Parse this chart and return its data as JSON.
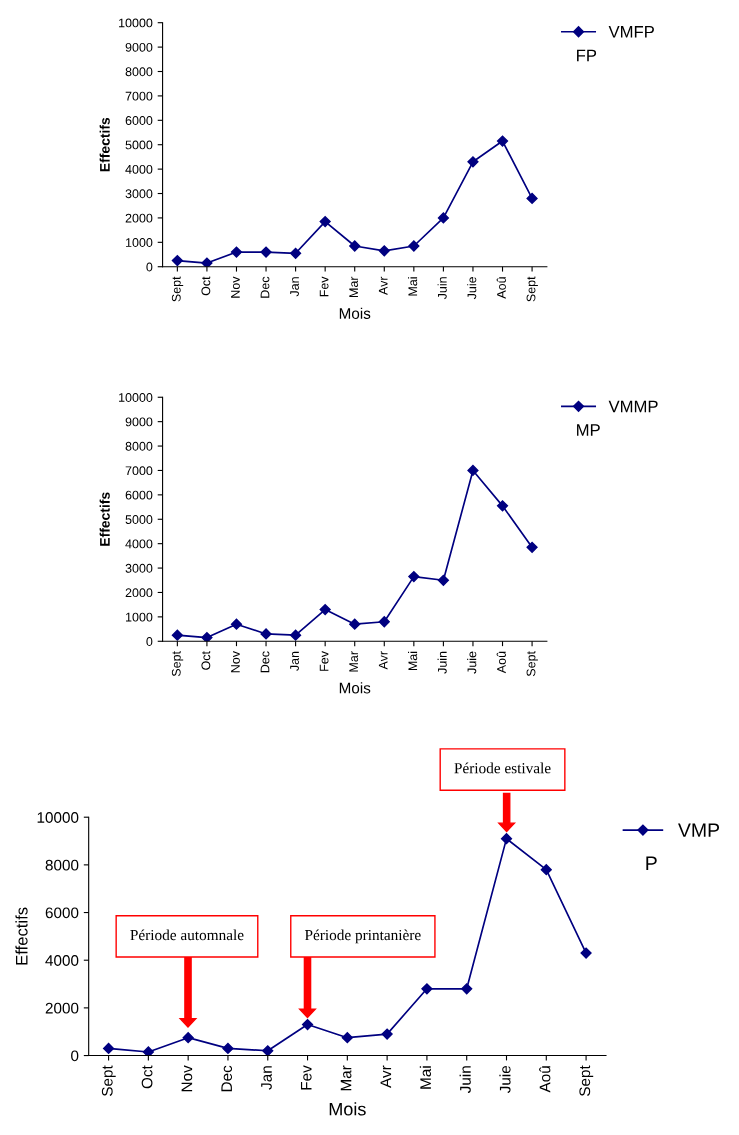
{
  "chart_data": [
    {
      "type": "line",
      "xlabel": "Mois",
      "ylabel": "Effectifs",
      "categories": [
        "Sept",
        "Oct",
        "Nov",
        "Dec",
        "Jan",
        "Fev",
        "Mar",
        "Avr",
        "Mai",
        "Juin",
        "Juie",
        "Aoû",
        "Sept"
      ],
      "series": [
        {
          "name": "VMFP",
          "color": "#000080",
          "values": [
            250,
            150,
            600,
            600,
            550,
            1850,
            850,
            650,
            850,
            2000,
            4300,
            5150,
            2800
          ]
        }
      ],
      "ylim": [
        0,
        10000
      ],
      "yticks": [
        0,
        1000,
        2000,
        3000,
        4000,
        5000,
        6000,
        7000,
        8000,
        9000,
        10000
      ],
      "marker": "diamond",
      "legend": "top right",
      "grid": false,
      "annotations": [
        "FP"
      ]
    },
    {
      "type": "line",
      "xlabel": "Mois",
      "ylabel": "Effectifs",
      "categories": [
        "Sept",
        "Oct",
        "Nov",
        "Dec",
        "Jan",
        "Fev",
        "Mar",
        "Avr",
        "Mai",
        "Juin",
        "Juie",
        "Aoû",
        "Sept"
      ],
      "series": [
        {
          "name": "VMMP",
          "color": "#000080",
          "values": [
            250,
            150,
            700,
            300,
            250,
            1300,
            700,
            800,
            2650,
            2500,
            7000,
            5550,
            3850
          ]
        }
      ],
      "ylim": [
        0,
        10000
      ],
      "yticks": [
        0,
        1000,
        2000,
        3000,
        4000,
        5000,
        6000,
        7000,
        8000,
        9000,
        10000
      ],
      "marker": "diamond",
      "legend": "top right",
      "grid": false,
      "annotations": [
        "MP"
      ]
    },
    {
      "type": "line",
      "xlabel": "Mois",
      "ylabel": "Effectifs",
      "categories": [
        "Sept",
        "Oct",
        "Nov",
        "Dec",
        "Jan",
        "Fev",
        "Mar",
        "Avr",
        "Mai",
        "Juin",
        "Juie",
        "Aoû",
        "Sept"
      ],
      "series": [
        {
          "name": "VMP",
          "color": "#000080",
          "values": [
            300,
            150,
            750,
            300,
            200,
            1300,
            750,
            900,
            2800,
            2800,
            9100,
            7800,
            4300
          ]
        }
      ],
      "ylim": [
        0,
        10000
      ],
      "yticks": [
        0,
        2000,
        4000,
        6000,
        8000,
        10000
      ],
      "marker": "diamond",
      "legend": "top right",
      "grid": false,
      "annotations": [
        "P",
        "Période automnale",
        "Période printanière",
        "Période estivale"
      ]
    }
  ]
}
